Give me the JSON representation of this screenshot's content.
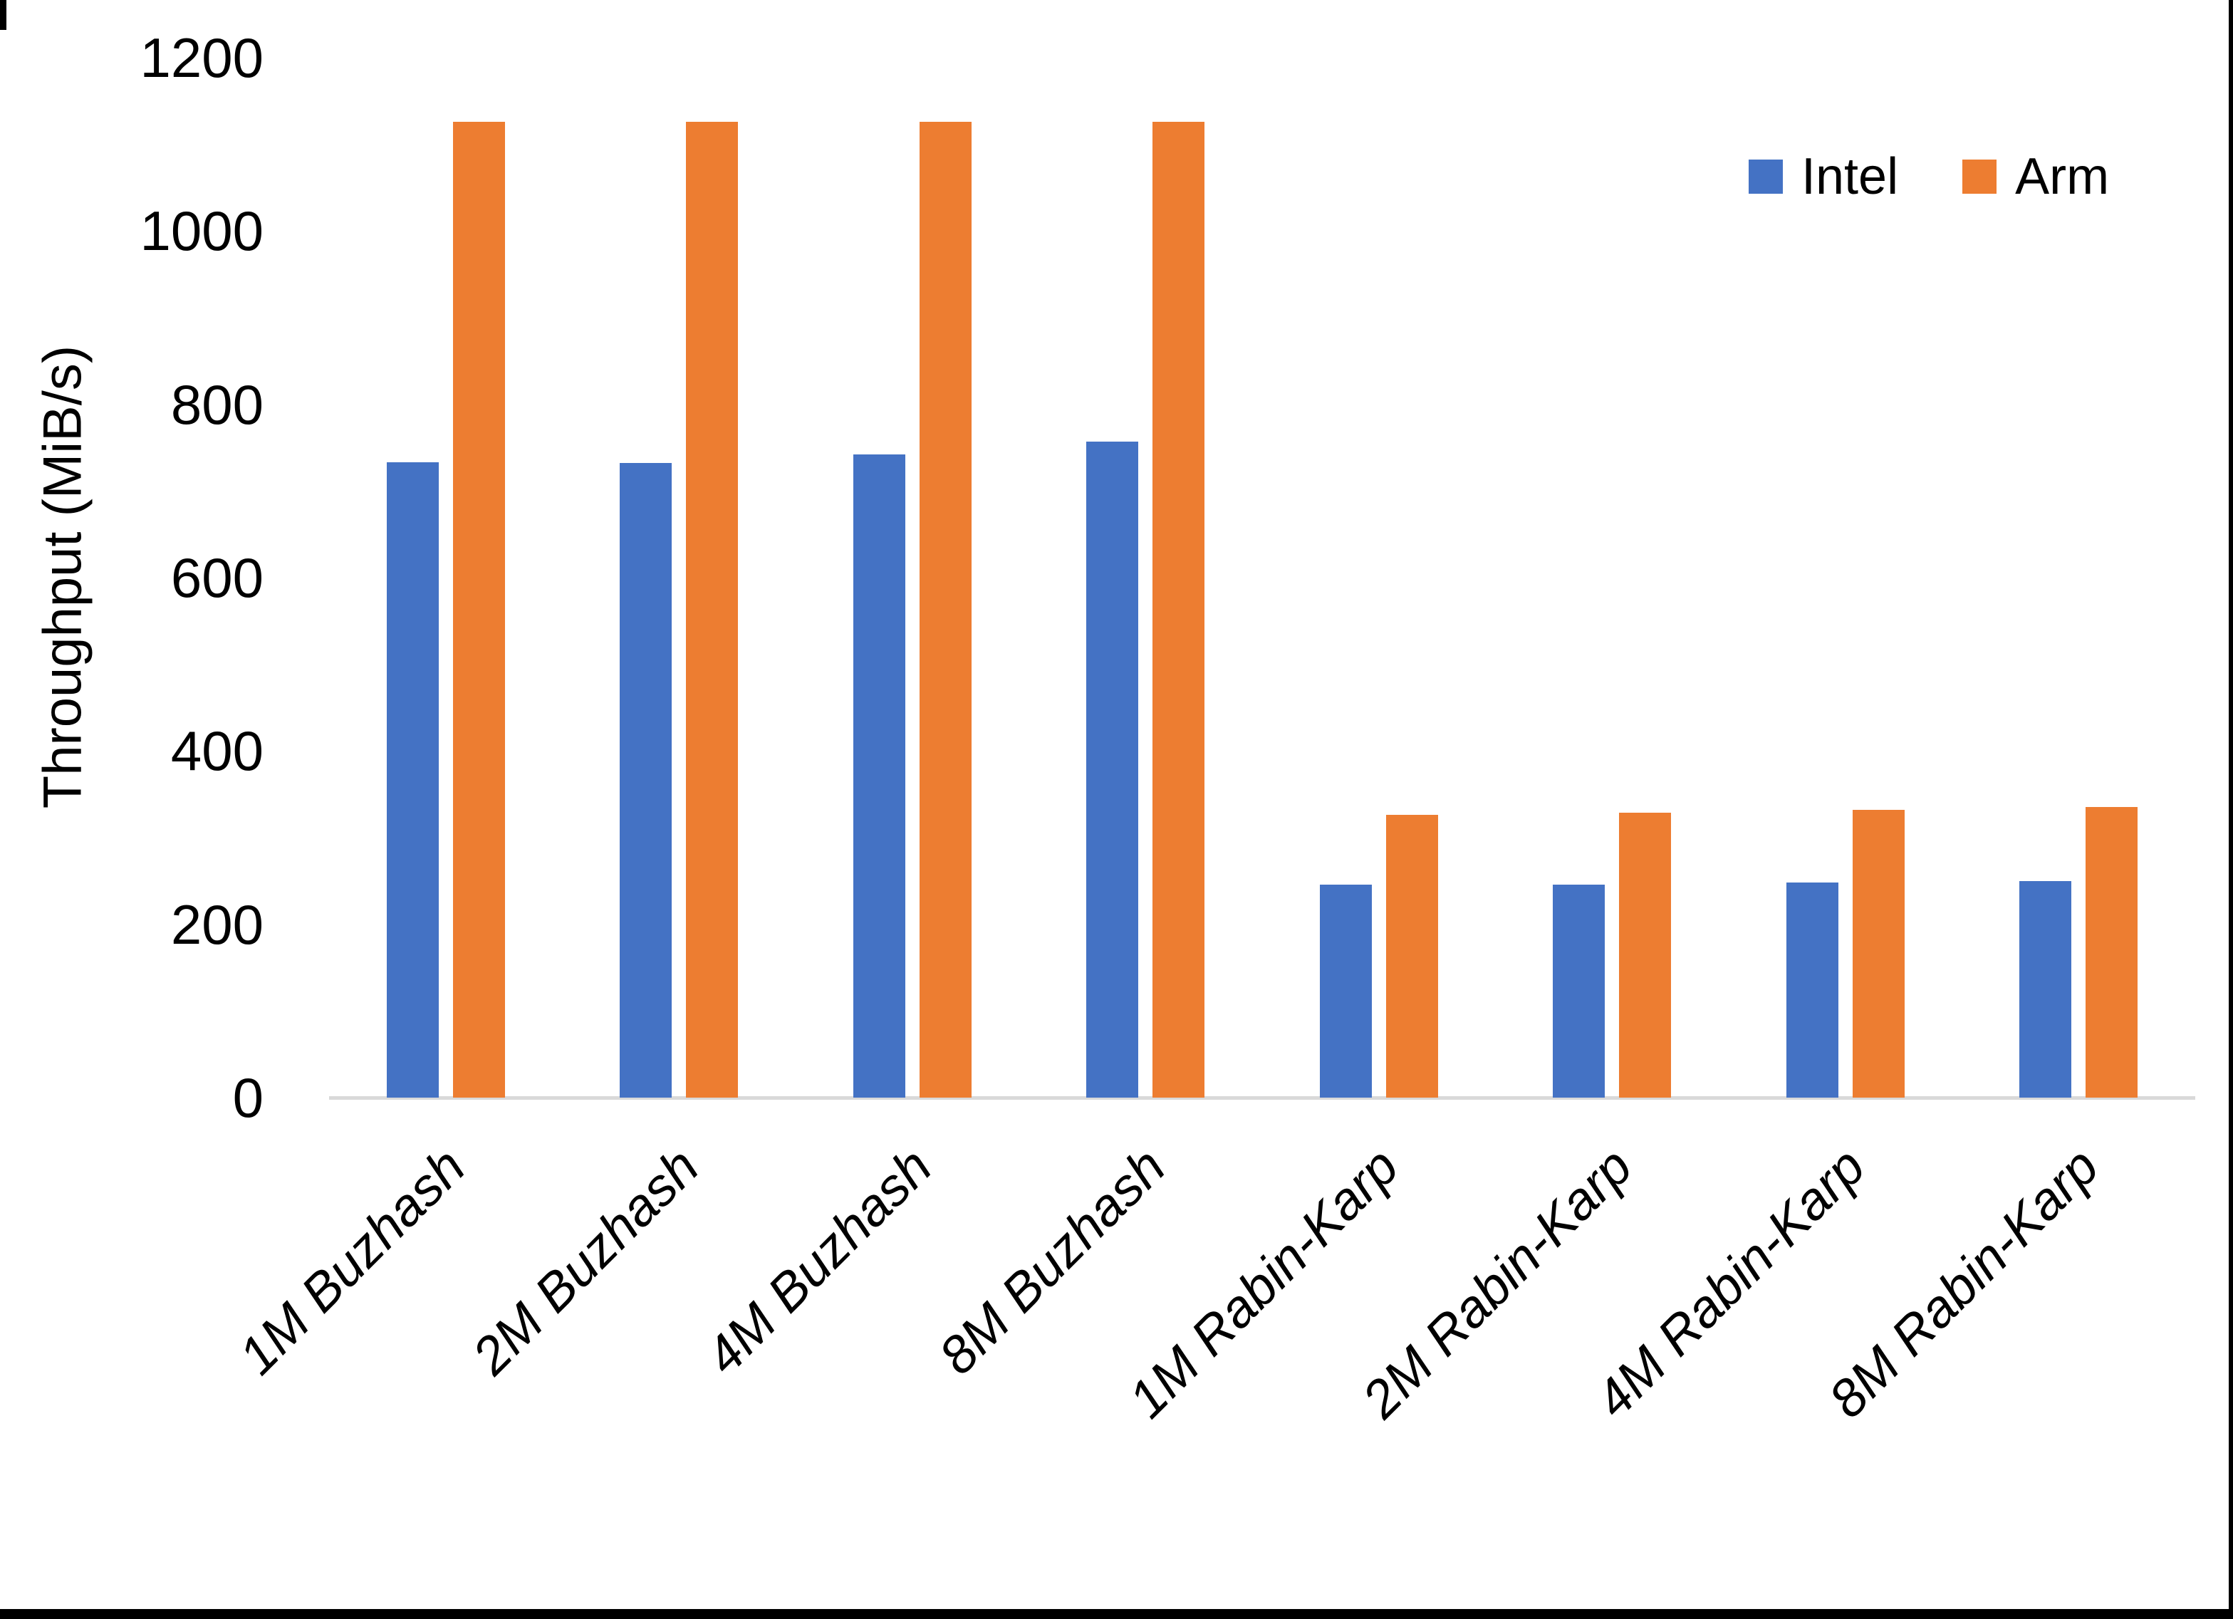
{
  "chart_data": {
    "type": "bar",
    "title": "",
    "xlabel": "",
    "ylabel": "Throughput (MiB/s)",
    "ylim": [
      0,
      1200
    ],
    "ytick_step": 200,
    "yticks": [
      0,
      200,
      400,
      600,
      800,
      1000,
      1200
    ],
    "grid": false,
    "legend_position": "top-right",
    "axis_line_color": "#D9D9D9",
    "categories": [
      "1M Buzhash",
      "2M Buzhash",
      "4M Buzhash",
      "8M Buzhash",
      "1M Rabin-Karp",
      "2M Rabin-Karp",
      "4M Rabin-Karp",
      "8M Rabin-Karp"
    ],
    "series": [
      {
        "name": "Intel",
        "color": "#4472C4",
        "values": [
          733,
          732,
          742,
          757,
          246,
          246,
          248,
          250
        ]
      },
      {
        "name": "Arm",
        "color": "#ED7D31",
        "values": [
          1126,
          1126,
          1126,
          1126,
          326,
          329,
          332,
          335
        ]
      }
    ]
  }
}
